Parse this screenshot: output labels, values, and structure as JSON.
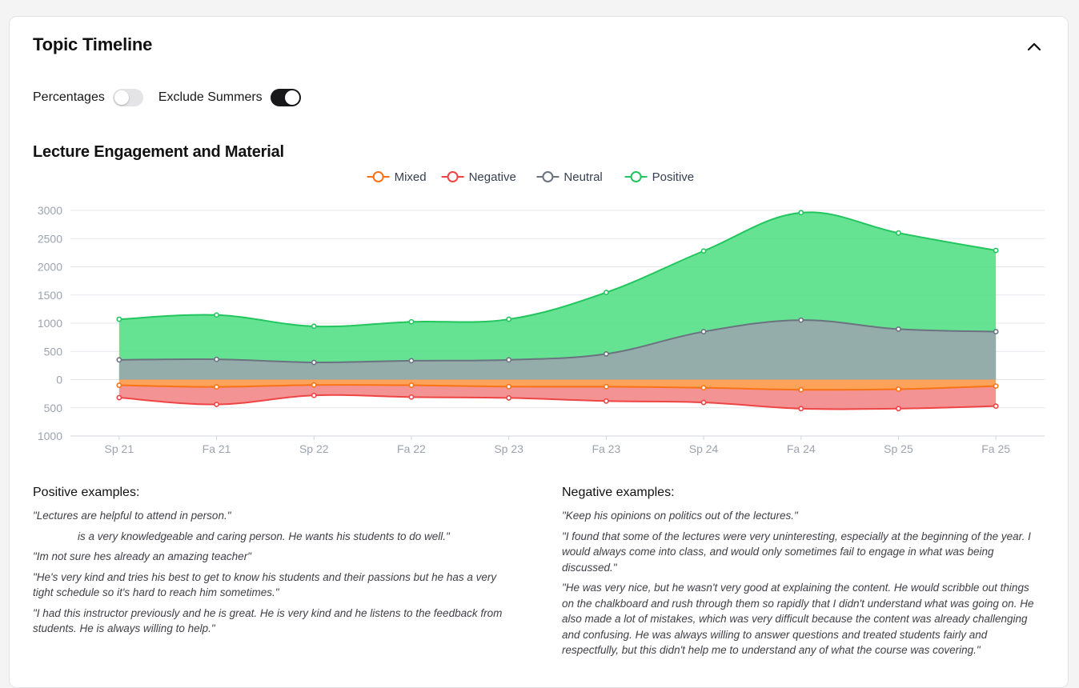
{
  "panel": {
    "title": "Topic Timeline"
  },
  "toggles": [
    {
      "label": "Percentages",
      "on": false
    },
    {
      "label": "Exclude Summers",
      "on": true
    }
  ],
  "chart_data": {
    "type": "area",
    "title": "Lecture Engagement and Material",
    "categories": [
      "Sp 21",
      "Fa 21",
      "Sp 22",
      "Fa 22",
      "Sp 23",
      "Fa 23",
      "Sp 24",
      "Fa 24",
      "Sp 25",
      "Fa 25"
    ],
    "y_tick_labels": [
      "3000",
      "2500",
      "2000",
      "1500",
      "1000",
      "500",
      "0",
      "500",
      "1000"
    ],
    "y_ticks": [
      3000,
      2500,
      2000,
      1500,
      1000,
      500,
      0,
      -500,
      -1000
    ],
    "ylim": [
      -1000,
      3000
    ],
    "grid": true,
    "legend_position": "top-center",
    "series": [
      {
        "name": "Mixed",
        "color": "#f97316",
        "fill": "#fb923c",
        "values": [
          -100,
          -130,
          -95,
          -100,
          -125,
          -125,
          -145,
          -180,
          -170,
          -115
        ]
      },
      {
        "name": "Negative",
        "color": "#ef4444",
        "fill": "#f28080",
        "values": [
          -220,
          -310,
          -185,
          -210,
          -200,
          -255,
          -260,
          -335,
          -345,
          -355
        ]
      },
      {
        "name": "Neutral",
        "color": "#6b7280",
        "fill": "#9ca3af",
        "values": [
          350,
          360,
          305,
          335,
          350,
          455,
          850,
          1055,
          895,
          850
        ]
      },
      {
        "name": "Positive",
        "color": "#22c55e",
        "fill": "#4ade80",
        "values": [
          720,
          785,
          640,
          690,
          720,
          1090,
          1430,
          1905,
          1705,
          1440
        ]
      }
    ]
  },
  "positive_examples": {
    "heading": "Positive examples:",
    "items": [
      "\"Lectures are helpful to attend in person.\"",
      "is a very knowledgeable and caring person. He wants his students to do well.\"",
      "\"Im not sure hes already an amazing teacher\"",
      "\"He's very kind and tries his best to get to know his students and their passions but he has a very tight schedule so it's hard to reach him sometimes.\"",
      "\"I had this instructor previously and he is great. He is very kind and he listens to the feedback from students. He is always willing to help.\""
    ]
  },
  "negative_examples": {
    "heading": "Negative examples:",
    "items": [
      "\"Keep his opinions on politics out of the lectures.\"",
      "\"I found that some of the lectures were very uninteresting, especially at the beginning of the year. I would always come into class, and would only sometimes fail to engage in what was being discussed.\"",
      "\"He was very nice, but he wasn't very good at explaining the content. He would scribble out things on the chalkboard and rush through them so rapidly that I didn't understand what was going on. He also made a lot of mistakes, which was very difficult because the content was already challenging and confusing. He was always willing to answer questions and treated students fairly and respectfully, but this didn't help me to understand any of what the course was covering.\""
    ]
  }
}
